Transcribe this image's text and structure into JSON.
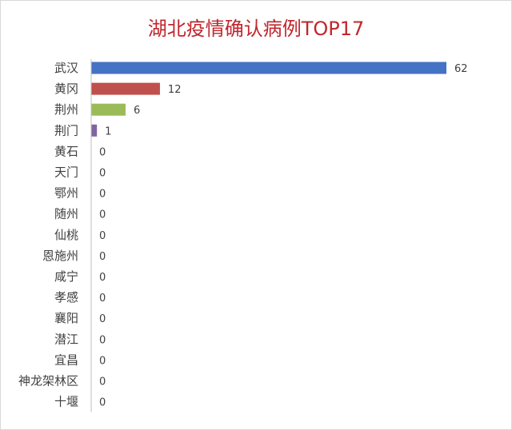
{
  "chart_data": {
    "type": "bar",
    "orientation": "horizontal",
    "title": "湖北疫情确认病例TOP17",
    "categories": [
      "武汉",
      "黄冈",
      "荆州",
      "荆门",
      "黄石",
      "天门",
      "鄂州",
      "随州",
      "仙桃",
      "恩施州",
      "咸宁",
      "孝感",
      "襄阳",
      "潜江",
      "宜昌",
      "神龙架林区",
      "十堰"
    ],
    "values": [
      62,
      12,
      6,
      1,
      0,
      0,
      0,
      0,
      0,
      0,
      0,
      0,
      0,
      0,
      0,
      0,
      0
    ],
    "colors": [
      "#4472c4",
      "#c0504d",
      "#9bbb59",
      "#8064a2",
      "#4bacc6",
      "#f79646",
      "#4472c4",
      "#c0504d",
      "#9bbb59",
      "#8064a2",
      "#4bacc6",
      "#f79646",
      "#4472c4",
      "#c0504d",
      "#9bbb59",
      "#8064a2",
      "#4bacc6"
    ],
    "xlim": [
      0,
      62
    ],
    "grid": false,
    "data_labels": true,
    "xlabel": "",
    "ylabel": ""
  }
}
